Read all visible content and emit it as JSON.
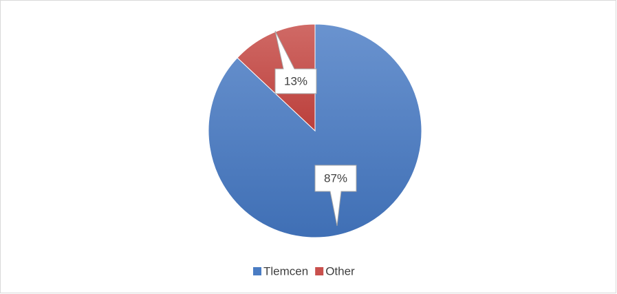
{
  "chart_data": {
    "type": "pie",
    "categories": [
      "Tlemcen",
      "Other"
    ],
    "values": [
      87,
      13
    ],
    "value_labels": [
      "87%",
      "13%"
    ],
    "colors": [
      "#4a7cc3",
      "#c9504d"
    ],
    "legend": "bottom"
  }
}
